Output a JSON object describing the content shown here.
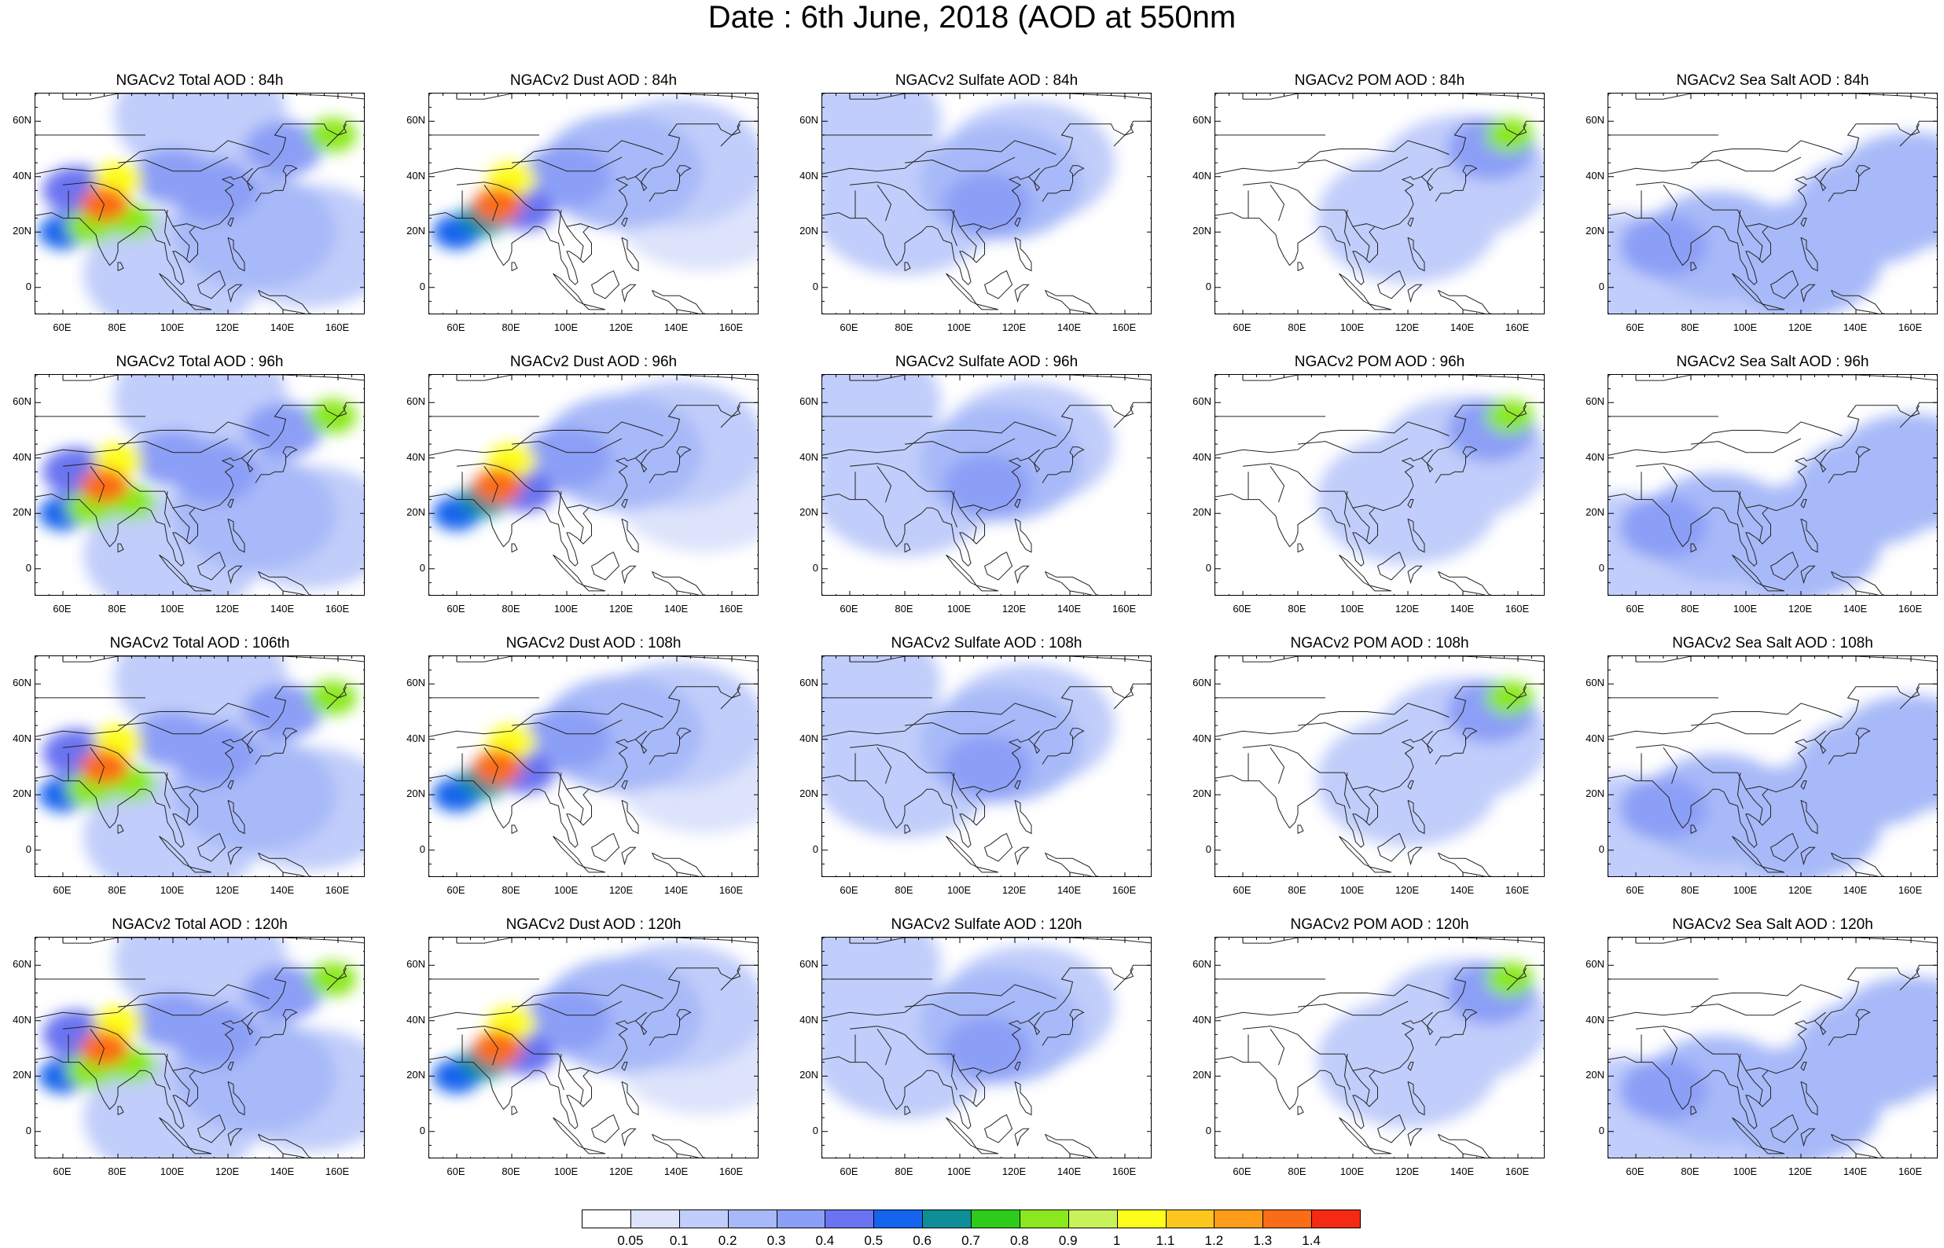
{
  "figure": {
    "title": "Date : 6th June, 2018 (AOD at 550nm"
  },
  "map_axes": {
    "lon_ticks": [
      "60E",
      "80E",
      "100E",
      "120E",
      "140E",
      "160E"
    ],
    "lat_ticks": [
      "60N",
      "40N",
      "20N",
      "0"
    ]
  },
  "panels": [
    [
      {
        "title": "NGACv2 Total AOD : 84h",
        "species": "total",
        "forecast_hour": 84
      },
      {
        "title": "NGACv2 Dust AOD : 84h",
        "species": "dust",
        "forecast_hour": 84
      },
      {
        "title": "NGACv2 Sulfate AOD : 84h",
        "species": "sulfate",
        "forecast_hour": 84
      },
      {
        "title": "NGACv2 POM AOD : 84h",
        "species": "pom",
        "forecast_hour": 84
      },
      {
        "title": "NGACv2 Sea Salt AOD : 84h",
        "species": "seasalt",
        "forecast_hour": 84
      }
    ],
    [
      {
        "title": "NGACv2 Total AOD : 96h",
        "species": "total",
        "forecast_hour": 96
      },
      {
        "title": "NGACv2 Dust AOD : 96h",
        "species": "dust",
        "forecast_hour": 96
      },
      {
        "title": "NGACv2 Sulfate AOD : 96h",
        "species": "sulfate",
        "forecast_hour": 96
      },
      {
        "title": "NGACv2 POM AOD : 96h",
        "species": "pom",
        "forecast_hour": 96
      },
      {
        "title": "NGACv2 Sea Salt AOD : 96h",
        "species": "seasalt",
        "forecast_hour": 96
      }
    ],
    [
      {
        "title": "NGACv2 Total AOD : 106th",
        "species": "total",
        "forecast_hour": 106
      },
      {
        "title": "NGACv2 Dust AOD : 108h",
        "species": "dust",
        "forecast_hour": 108
      },
      {
        "title": "NGACv2 Sulfate AOD : 108h",
        "species": "sulfate",
        "forecast_hour": 108
      },
      {
        "title": "NGACv2 POM AOD : 108h",
        "species": "pom",
        "forecast_hour": 108
      },
      {
        "title": "NGACv2 Sea Salt AOD : 108h",
        "species": "seasalt",
        "forecast_hour": 108
      }
    ],
    [
      {
        "title": "NGACv2 Total AOD : 120h",
        "species": "total",
        "forecast_hour": 120
      },
      {
        "title": "NGACv2 Dust AOD : 120h",
        "species": "dust",
        "forecast_hour": 120
      },
      {
        "title": "NGACv2 Sulfate AOD : 120h",
        "species": "sulfate",
        "forecast_hour": 120
      },
      {
        "title": "NGACv2 POM AOD : 120h",
        "species": "pom",
        "forecast_hour": 120
      },
      {
        "title": "NGACv2 Sea Salt  AOD : 120h",
        "species": "seasalt",
        "forecast_hour": 120
      }
    ]
  ],
  "colorbar": {
    "labels": [
      "0.05",
      "0.1",
      "0.2",
      "0.3",
      "0.4",
      "0.5",
      "0.6",
      "0.7",
      "0.8",
      "0.9",
      "1",
      "1.1",
      "1.2",
      "1.3",
      "1.4"
    ],
    "colors": [
      "#ffffff",
      "#dde3fb",
      "#c1cdfa",
      "#a7b9f8",
      "#8c9ff6",
      "#6a73f1",
      "#1464ee",
      "#0e8e98",
      "#2ecc1a",
      "#8be81e",
      "#c8f25a",
      "#fdfd1c",
      "#fdc61e",
      "#fc9c18",
      "#fb6c16",
      "#f52a14"
    ]
  },
  "chart_data": {
    "type": "heatmap",
    "title": "Date : 6th June, 2018 (AOD at 550nm",
    "x_range_deg_lon": [
      50,
      170
    ],
    "y_range_deg_lat": [
      -10,
      70
    ],
    "value_bins": [
      0.05,
      0.1,
      0.2,
      0.3,
      0.4,
      0.5,
      0.6,
      0.7,
      0.8,
      0.9,
      1,
      1.1,
      1.2,
      1.3,
      1.4
    ],
    "fields": {
      "total": [
        {
          "lon": 75,
          "lat": 30,
          "aod": 1.3
        },
        {
          "lon": 80,
          "lat": 39,
          "aod": 1.05
        },
        {
          "lon": 70,
          "lat": 22,
          "aod": 0.85
        },
        {
          "lon": 85,
          "lat": 24,
          "aod": 0.8
        },
        {
          "lon": 60,
          "lat": 20,
          "aod": 0.5
        },
        {
          "lon": 65,
          "lat": 35,
          "aod": 0.4
        },
        {
          "lon": 100,
          "lat": 40,
          "aod": 0.35
        },
        {
          "lon": 115,
          "lat": 35,
          "aod": 0.3
        },
        {
          "lon": 140,
          "lat": 50,
          "aod": 0.35
        },
        {
          "lon": 158,
          "lat": 55,
          "aod": 0.85
        },
        {
          "lon": 130,
          "lat": 20,
          "aod": 0.2
        },
        {
          "lon": 150,
          "lat": 15,
          "aod": 0.15
        },
        {
          "lon": 100,
          "lat": 5,
          "aod": 0.12
        },
        {
          "lon": 110,
          "lat": 62,
          "aod": 0.15
        }
      ],
      "dust": [
        {
          "lon": 75,
          "lat": 30,
          "aod": 1.3
        },
        {
          "lon": 80,
          "lat": 39,
          "aod": 1.05
        },
        {
          "lon": 70,
          "lat": 25,
          "aod": 0.6
        },
        {
          "lon": 60,
          "lat": 20,
          "aod": 0.5
        },
        {
          "lon": 85,
          "lat": 28,
          "aod": 0.45
        },
        {
          "lon": 100,
          "lat": 40,
          "aod": 0.3
        },
        {
          "lon": 120,
          "lat": 42,
          "aod": 0.2
        },
        {
          "lon": 140,
          "lat": 45,
          "aod": 0.12
        },
        {
          "lon": 150,
          "lat": 30,
          "aod": 0.08
        }
      ],
      "sulfate": [
        {
          "lon": 110,
          "lat": 30,
          "aod": 0.3
        },
        {
          "lon": 115,
          "lat": 38,
          "aod": 0.2
        },
        {
          "lon": 125,
          "lat": 45,
          "aod": 0.15
        },
        {
          "lon": 80,
          "lat": 28,
          "aod": 0.1
        },
        {
          "lon": 60,
          "lat": 60,
          "aod": 0.1
        }
      ],
      "pom": [
        {
          "lon": 157,
          "lat": 55,
          "aod": 0.85
        },
        {
          "lon": 150,
          "lat": 50,
          "aod": 0.3
        },
        {
          "lon": 140,
          "lat": 40,
          "aod": 0.15
        },
        {
          "lon": 120,
          "lat": 25,
          "aod": 0.1
        }
      ],
      "seasalt": [
        {
          "lon": 70,
          "lat": 15,
          "aod": 0.3
        },
        {
          "lon": 90,
          "lat": 15,
          "aod": 0.25
        },
        {
          "lon": 145,
          "lat": 28,
          "aod": 0.25
        },
        {
          "lon": 120,
          "lat": 10,
          "aod": 0.2
        },
        {
          "lon": 160,
          "lat": 35,
          "aod": 0.2
        },
        {
          "lon": 100,
          "lat": 0,
          "aod": 0.15
        },
        {
          "lon": 55,
          "lat": 5,
          "aod": 0.15
        }
      ]
    }
  }
}
